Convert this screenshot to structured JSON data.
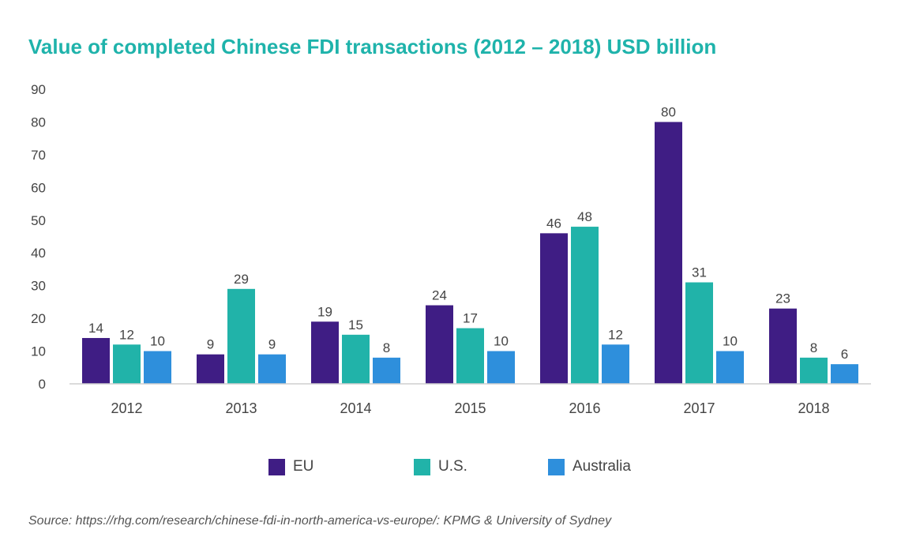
{
  "chart_data": {
    "type": "bar",
    "title": "Value of completed Chinese FDI transactions (2012 – 2018) USD billion",
    "xlabel": "",
    "ylabel": "",
    "ylim": [
      0,
      90
    ],
    "yticks": [
      0,
      10,
      20,
      30,
      40,
      50,
      60,
      70,
      80,
      90
    ],
    "categories": [
      "2012",
      "2013",
      "2014",
      "2015",
      "2016",
      "2017",
      "2018"
    ],
    "series": [
      {
        "name": "EU",
        "color": "#3f1d84",
        "values": [
          14,
          9,
          19,
          24,
          46,
          80,
          23
        ]
      },
      {
        "name": "U.S.",
        "color": "#21b3a9",
        "values": [
          12,
          29,
          15,
          17,
          48,
          31,
          8
        ]
      },
      {
        "name": "Australia",
        "color": "#2e8fdc",
        "values": [
          10,
          9,
          8,
          10,
          12,
          10,
          6
        ]
      }
    ],
    "legend_position": "bottom",
    "grid": false,
    "source": "Source: https://rhg.com/research/chinese-fdi-in-north-america-vs-europe/: KPMG & University of Sydney"
  }
}
